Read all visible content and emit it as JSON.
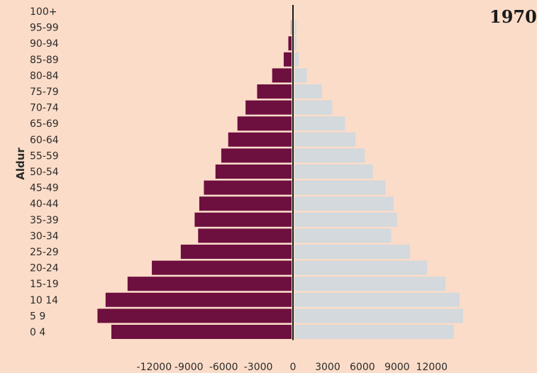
{
  "chart_data": {
    "type": "bar",
    "orientation": "horizontal",
    "layout": "population-pyramid",
    "year_label": "1970",
    "ylabel": "Aldur",
    "xlabel": "",
    "categories": [
      "100+",
      "95-99",
      "90-94",
      "85-89",
      "80-84",
      "75-79",
      "70-74",
      "65-69",
      "60-64",
      "55-59",
      "50-54",
      "45-49",
      "40-44",
      "35-39",
      "30-34",
      "25-29",
      "20-24",
      "15-19",
      "10 14",
      "5 9",
      "0 4"
    ],
    "series": [
      {
        "color": "#6d0f3f",
        "values": [
          -100,
          -150,
          -400,
          -800,
          -1800,
          -3100,
          -4100,
          -4800,
          -5600,
          -6200,
          -6700,
          -7700,
          -8100,
          -8500,
          -8200,
          -9700,
          -12200,
          -14300,
          -16200,
          -16900,
          -15700
        ]
      },
      {
        "color": "#d3d9dd",
        "values": [
          50,
          300,
          300,
          500,
          1200,
          2500,
          3400,
          4500,
          5400,
          6200,
          6900,
          8000,
          8700,
          9000,
          8500,
          10100,
          11600,
          13200,
          14400,
          14700,
          13900
        ]
      }
    ],
    "xticks": [
      -12000,
      -9000,
      -6000,
      -3000,
      0,
      3000,
      6000,
      9000,
      12000
    ],
    "xlim": [
      -17600,
      17600
    ]
  }
}
